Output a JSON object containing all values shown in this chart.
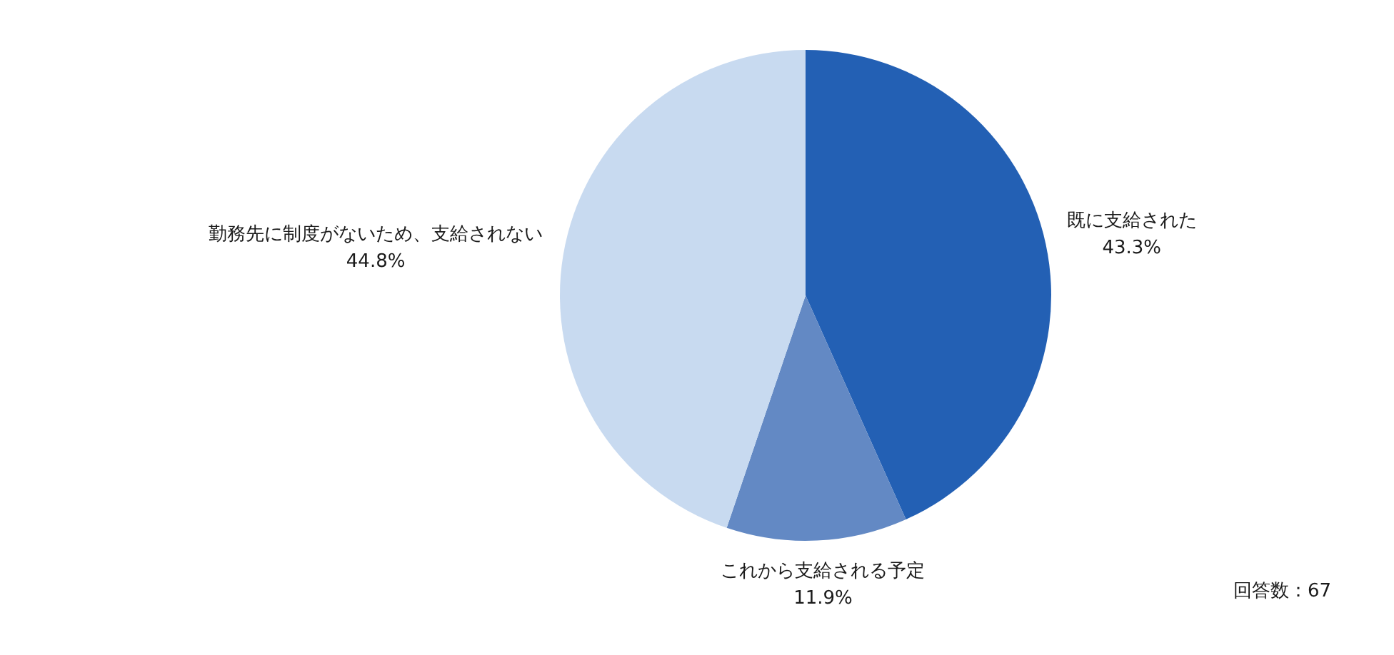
{
  "chart_data": {
    "type": "pie",
    "categories": [
      "既に支給された",
      "これから支給される予定",
      "勤務先に制度がないため、支給されない"
    ],
    "values": [
      43.3,
      11.9,
      44.8
    ],
    "colors": [
      "#2360b4",
      "#6389c4",
      "#c8daf0"
    ],
    "value_labels": [
      "43.3%",
      "11.9%",
      "44.8%"
    ],
    "legend": false,
    "annotations": [
      "回答数：67"
    ]
  }
}
